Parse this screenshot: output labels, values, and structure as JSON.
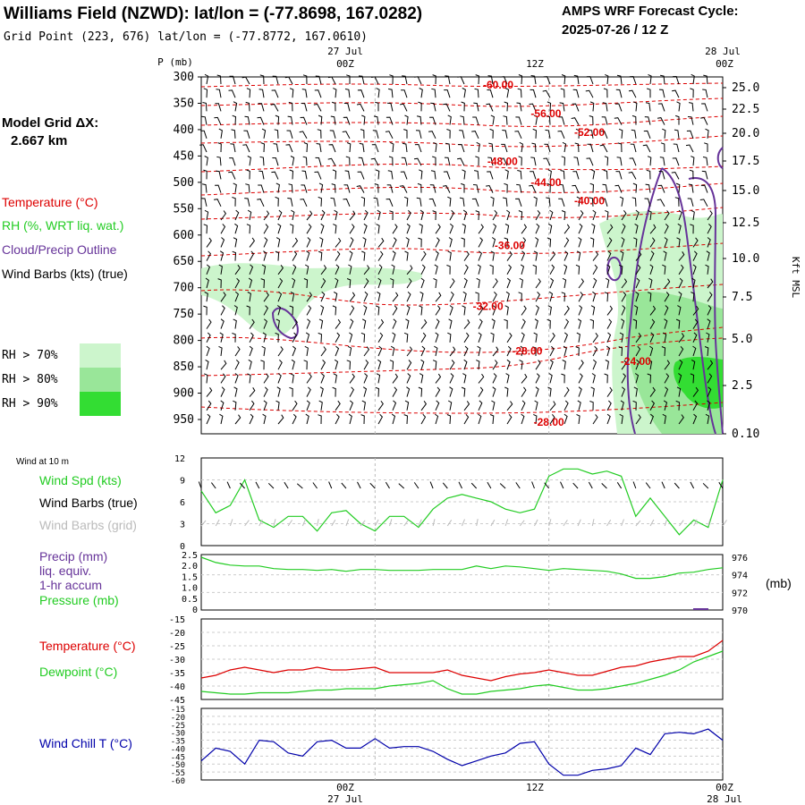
{
  "header": {
    "title": "Williams Field (NZWD):  lat/lon = (-77.8698, 167.0282)",
    "grid_point": "Grid Point (223, 676) lat/lon = (-77.8772, 167.0610)",
    "cycle_label": "AMPS WRF Forecast Cycle:",
    "cycle_value": "2025-07-26 / 12  Z"
  },
  "left_panel": {
    "model_grid_label": "Model Grid ΔX:",
    "model_grid_value": "2.667 km",
    "legend_temperature": "Temperature (°C)",
    "legend_rh": "RH (%, WRT liq. wat.)",
    "legend_cloud": "Cloud/Precip Outline",
    "legend_wind": "Wind Barbs (kts) (true)",
    "rh_levels": [
      {
        "label": "RH > 70%",
        "color": "#ccf5cc"
      },
      {
        "label": "RH > 80%",
        "color": "#99e699"
      },
      {
        "label": "RH > 90%",
        "color": "#33dd33"
      }
    ]
  },
  "time_axis": {
    "top_date_1": "27 Jul",
    "top_date_2": "28 Jul",
    "ticks": [
      "00Z",
      "12Z",
      "00Z"
    ],
    "bottom_date_1": "27 Jul",
    "bottom_date_2": "28 Jul"
  },
  "colors": {
    "temperature": "#dd0000",
    "dewpoint": "#22cc22",
    "wind_speed": "#22cc22",
    "cloud": "#663399",
    "wind_chill": "#0000aa",
    "precip": "#663399",
    "pressure": "#22cc22",
    "grid": "#999999"
  },
  "chart_data": [
    {
      "type": "heatmap",
      "name_hidden": "cross-section",
      "y_axis_label": "P (mb)",
      "y_ticks": [
        "300",
        "350",
        "400",
        "450",
        "500",
        "550",
        "600",
        "650",
        "700",
        "750",
        "800",
        "850",
        "900",
        "950"
      ],
      "y_right_label": "Kft MSL",
      "y_right_ticks": [
        "25.0",
        "22.5",
        "20.0",
        "17.5",
        "15.0",
        "12.5",
        "10.0",
        "7.5",
        "5.0",
        "2.5",
        "0.10"
      ],
      "temperature_contour_labels": [
        {
          "text": "-60.00",
          "hours": 8.5,
          "p": 315
        },
        {
          "text": "-56.00",
          "hours": 11.8,
          "p": 370
        },
        {
          "text": "-52.00",
          "hours": 14.8,
          "p": 405
        },
        {
          "text": "-48.00",
          "hours": 8.8,
          "p": 460
        },
        {
          "text": "-44.00",
          "hours": 11.8,
          "p": 500
        },
        {
          "text": "-40.00",
          "hours": 14.8,
          "p": 535
        },
        {
          "text": "-36.00",
          "hours": 9.3,
          "p": 620
        },
        {
          "text": "-32.00",
          "hours": 7.8,
          "p": 735
        },
        {
          "text": "-28.00",
          "hours": 10.5,
          "p": 820
        },
        {
          "text": "-24.00",
          "hours": 18.0,
          "p": 840
        },
        {
          "text": "-28.00",
          "hours": 12.0,
          "p": 955
        }
      ]
    },
    {
      "type": "line",
      "section_label": "Wind at 10 m",
      "labels": [
        "Wind Spd (kts)",
        "Wind Barbs (true)",
        "Wind Barbs (grid)"
      ],
      "y_ticks": [
        "12",
        "9",
        "6",
        "3",
        "0"
      ],
      "ylim": [
        0,
        12
      ],
      "x_range_hours": [
        -12,
        24
      ],
      "x": [
        -12,
        -11,
        -10,
        -9,
        -8,
        -7,
        -6,
        -5,
        -4,
        -3,
        -2,
        -1,
        0,
        1,
        2,
        3,
        4,
        5,
        6,
        7,
        8,
        9,
        10,
        11,
        12,
        13,
        14,
        15,
        16,
        17,
        18,
        19,
        20,
        21,
        22,
        23,
        24
      ],
      "series": [
        {
          "values": [
            7.5,
            4.5,
            5.5,
            9,
            3.5,
            2.5,
            4,
            4,
            2,
            4.5,
            4.8,
            3,
            2,
            4,
            4,
            2.5,
            5,
            6.5,
            7,
            6.5,
            6,
            5,
            4.5,
            5,
            9.5,
            10.5,
            10.5,
            9.8,
            10.2,
            9.5,
            4,
            6.5,
            4,
            1.5,
            3.5,
            2.5,
            9
          ]
        }
      ]
    },
    {
      "type": "line",
      "labels": [
        "Precip (mm)",
        "liq. equiv.",
        "1-hr accum",
        "Pressure (mb)"
      ],
      "y_ticks_left": [
        "2.5",
        "2.0",
        "1.5",
        "1.0",
        "0.5",
        "0"
      ],
      "y_ticks_right": [
        "976",
        "974",
        "972",
        "970"
      ],
      "y_right_unit": "(mb)",
      "ylim_pressure": [
        970,
        976.3
      ],
      "x": [
        -12,
        -11,
        -10,
        -9,
        -8,
        -7,
        -6,
        -5,
        -4,
        -3,
        -2,
        -1,
        0,
        1,
        2,
        3,
        4,
        5,
        6,
        7,
        8,
        9,
        10,
        11,
        12,
        13,
        14,
        15,
        16,
        17,
        18,
        19,
        20,
        21,
        22,
        23,
        24
      ],
      "series": [
        {
          "values": [
            976,
            975.4,
            975.1,
            975.0,
            975.0,
            974.7,
            974.6,
            974.6,
            974.5,
            974.6,
            974.4,
            974.6,
            974.6,
            974.5,
            974.5,
            974.5,
            974.6,
            974.6,
            974.6,
            975.0,
            974.7,
            975.0,
            974.9,
            974.7,
            974.5,
            974.7,
            974.6,
            974.5,
            974.4,
            974.1,
            973.6,
            973.6,
            973.8,
            974.2,
            974.3,
            974.6,
            974.8
          ]
        }
      ]
    },
    {
      "type": "line",
      "labels": [
        "Temperature (°C)",
        "Dewpoint (°C)"
      ],
      "y_ticks": [
        "-15",
        "-20",
        "-25",
        "-30",
        "-35",
        "-40",
        "-45"
      ],
      "ylim": [
        -45,
        -15
      ],
      "x": [
        -12,
        -11,
        -10,
        -9,
        -8,
        -7,
        -6,
        -5,
        -4,
        -3,
        -2,
        -1,
        0,
        1,
        2,
        3,
        4,
        5,
        6,
        7,
        8,
        9,
        10,
        11,
        12,
        13,
        14,
        15,
        16,
        17,
        18,
        19,
        20,
        21,
        22,
        23,
        24
      ],
      "series": [
        {
          "name": "Temperature (°C)",
          "values": [
            -37,
            -36,
            -34,
            -33,
            -34,
            -35,
            -34,
            -34,
            -33,
            -34,
            -34,
            -33.5,
            -33,
            -35,
            -35,
            -35,
            -35,
            -34,
            -36,
            -37,
            -38,
            -36.5,
            -35.5,
            -35,
            -34,
            -35,
            -36,
            -36,
            -34.5,
            -33,
            -32.5,
            -31,
            -30,
            -29,
            -29,
            -27,
            -23
          ]
        },
        {
          "name": "Dewpoint (°C)",
          "values": [
            -42,
            -42.5,
            -43,
            -43,
            -42.5,
            -42.5,
            -42.5,
            -42,
            -41.5,
            -41.5,
            -41,
            -41,
            -41,
            -40,
            -39.5,
            -39,
            -38,
            -41,
            -43,
            -43,
            -42,
            -41.5,
            -41,
            -40,
            -39.5,
            -40.5,
            -41.5,
            -41.5,
            -41,
            -40,
            -39,
            -37.5,
            -36,
            -34,
            -31,
            -29,
            -27
          ]
        }
      ]
    },
    {
      "type": "line",
      "labels": [
        "Wind Chill T (°C)"
      ],
      "y_ticks": [
        "-15",
        "-20",
        "-25",
        "-30",
        "-35",
        "-40",
        "-45",
        "-50",
        "-55",
        "-60"
      ],
      "ylim": [
        -60,
        -15
      ],
      "x": [
        -12,
        -11,
        -10,
        -9,
        -8,
        -7,
        -6,
        -5,
        -4,
        -3,
        -2,
        -1,
        0,
        1,
        2,
        3,
        4,
        5,
        6,
        7,
        8,
        9,
        10,
        11,
        12,
        13,
        14,
        15,
        16,
        17,
        18,
        19,
        20,
        21,
        22,
        23,
        24
      ],
      "series": [
        {
          "values": [
            -48,
            -40,
            -42,
            -50,
            -35,
            -36,
            -43,
            -45,
            -36,
            -35,
            -40,
            -40,
            -34,
            -40,
            -39,
            -39,
            -42,
            -47,
            -51,
            -48,
            -45,
            -43,
            -37,
            -36,
            -50,
            -57,
            -57,
            -54,
            -53,
            -51,
            -40,
            -44,
            -31,
            -30,
            -31,
            -28,
            -35
          ]
        }
      ]
    }
  ]
}
